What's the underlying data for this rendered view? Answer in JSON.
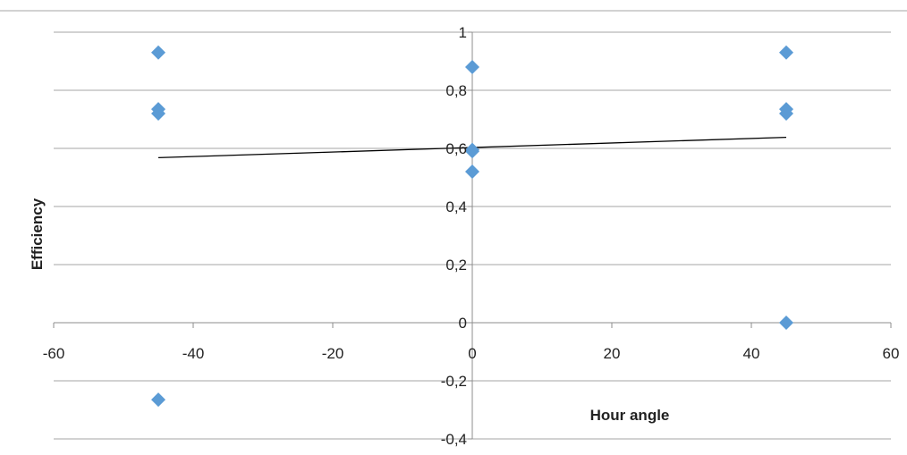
{
  "chart_data": {
    "type": "scatter",
    "title": "",
    "xlabel": "Hour angle",
    "ylabel": "Efficiency",
    "xlim": [
      -60,
      60
    ],
    "ylim": [
      -0.4,
      1
    ],
    "x_ticks": [
      -60,
      -40,
      -20,
      0,
      20,
      40,
      60
    ],
    "y_ticks": [
      1,
      0.8,
      0.6,
      0.4,
      0.2,
      0,
      -0.2,
      -0.4
    ],
    "x_tick_labels": [
      "-60",
      "-40",
      "-20",
      "0",
      "20",
      "40",
      "60"
    ],
    "y_tick_labels": [
      "1",
      "0,8",
      "0,6",
      "0,4",
      "0,2",
      "0",
      "-0,2",
      "-0,4"
    ],
    "grid": "horizontal",
    "legend": "none",
    "series": [
      {
        "marker": "diamond",
        "color": "#5B9BD5",
        "points": [
          {
            "x": -45,
            "y": 0.93
          },
          {
            "x": -45,
            "y": 0.735
          },
          {
            "x": -45,
            "y": 0.72
          },
          {
            "x": -45,
            "y": -0.265
          },
          {
            "x": 0,
            "y": 0.88
          },
          {
            "x": 0,
            "y": 0.595
          },
          {
            "x": 0,
            "y": 0.59
          },
          {
            "x": 0,
            "y": 0.52
          },
          {
            "x": 45,
            "y": 0.93
          },
          {
            "x": 45,
            "y": 0.735
          },
          {
            "x": 45,
            "y": 0.72
          },
          {
            "x": 45,
            "y": 0.0
          }
        ]
      }
    ],
    "trendline": {
      "type": "linear",
      "color": "#000000",
      "x": [
        -45,
        45
      ],
      "y": [
        0.568,
        0.638
      ]
    }
  }
}
